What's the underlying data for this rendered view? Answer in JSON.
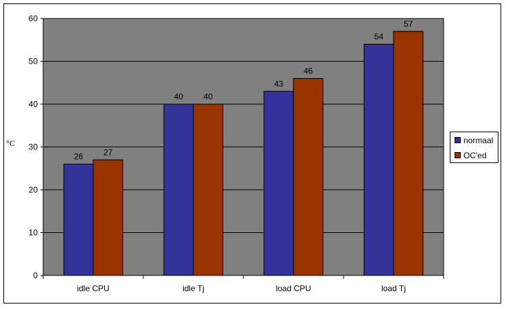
{
  "chart_data": {
    "type": "bar",
    "title": "",
    "xlabel": "",
    "ylabel": "°C",
    "categories": [
      "idle CPU",
      "idle Tj",
      "load CPU",
      "load Tj"
    ],
    "ylim": [
      0,
      60
    ],
    "yticks": [
      "0",
      "10",
      "20",
      "30",
      "40",
      "50",
      "60"
    ],
    "grid": true,
    "legend_position": "right",
    "plot_background": "#808080",
    "series": [
      {
        "name": "normaal",
        "values": [
          26,
          40,
          43,
          54
        ],
        "color": "#333399"
      },
      {
        "name": "OC'ed",
        "values": [
          27,
          40,
          46,
          57
        ],
        "color": "#993300"
      }
    ]
  }
}
